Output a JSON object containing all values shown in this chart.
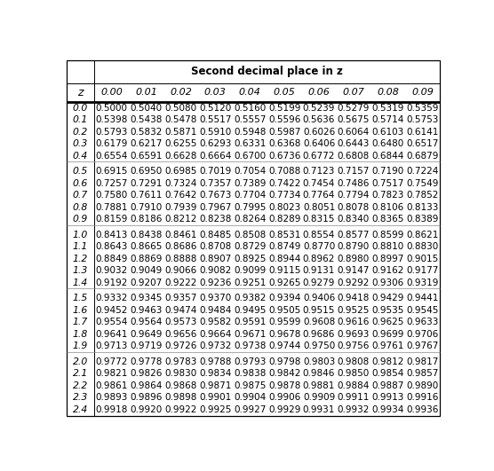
{
  "title": "Second decimal place in z",
  "col_headers": [
    "0.00",
    "0.01",
    "0.02",
    "0.03",
    "0.04",
    "0.05",
    "0.06",
    "0.07",
    "0.08",
    "0.09"
  ],
  "row_headers": [
    "0.0",
    "0.1",
    "0.2",
    "0.3",
    "0.4",
    "0.5",
    "0.6",
    "0.7",
    "0.8",
    "0.9",
    "1.0",
    "1.1",
    "1.2",
    "1.3",
    "1.4",
    "1.5",
    "1.6",
    "1.7",
    "1.8",
    "1.9",
    "2.0",
    "2.1",
    "2.2",
    "2.3",
    "2.4"
  ],
  "table_data": [
    [
      "0.5000",
      "0.5040",
      "0.5080",
      "0.5120",
      "0.5160",
      "0.5199",
      "0.5239",
      "0.5279",
      "0.5319",
      "0.5359"
    ],
    [
      "0.5398",
      "0.5438",
      "0.5478",
      "0.5517",
      "0.5557",
      "0.5596",
      "0.5636",
      "0.5675",
      "0.5714",
      "0.5753"
    ],
    [
      "0.5793",
      "0.5832",
      "0.5871",
      "0.5910",
      "0.5948",
      "0.5987",
      "0.6026",
      "0.6064",
      "0.6103",
      "0.6141"
    ],
    [
      "0.6179",
      "0.6217",
      "0.6255",
      "0.6293",
      "0.6331",
      "0.6368",
      "0.6406",
      "0.6443",
      "0.6480",
      "0.6517"
    ],
    [
      "0.6554",
      "0.6591",
      "0.6628",
      "0.6664",
      "0.6700",
      "0.6736",
      "0.6772",
      "0.6808",
      "0.6844",
      "0.6879"
    ],
    [
      "0.6915",
      "0.6950",
      "0.6985",
      "0.7019",
      "0.7054",
      "0.7088",
      "0.7123",
      "0.7157",
      "0.7190",
      "0.7224"
    ],
    [
      "0.7257",
      "0.7291",
      "0.7324",
      "0.7357",
      "0.7389",
      "0.7422",
      "0.7454",
      "0.7486",
      "0.7517",
      "0.7549"
    ],
    [
      "0.7580",
      "0.7611",
      "0.7642",
      "0.7673",
      "0.7704",
      "0.7734",
      "0.7764",
      "0.7794",
      "0.7823",
      "0.7852"
    ],
    [
      "0.7881",
      "0.7910",
      "0.7939",
      "0.7967",
      "0.7995",
      "0.8023",
      "0.8051",
      "0.8078",
      "0.8106",
      "0.8133"
    ],
    [
      "0.8159",
      "0.8186",
      "0.8212",
      "0.8238",
      "0.8264",
      "0.8289",
      "0.8315",
      "0.8340",
      "0.8365",
      "0.8389"
    ],
    [
      "0.8413",
      "0.8438",
      "0.8461",
      "0.8485",
      "0.8508",
      "0.8531",
      "0.8554",
      "0.8577",
      "0.8599",
      "0.8621"
    ],
    [
      "0.8643",
      "0.8665",
      "0.8686",
      "0.8708",
      "0.8729",
      "0.8749",
      "0.8770",
      "0.8790",
      "0.8810",
      "0.8830"
    ],
    [
      "0.8849",
      "0.8869",
      "0.8888",
      "0.8907",
      "0.8925",
      "0.8944",
      "0.8962",
      "0.8980",
      "0.8997",
      "0.9015"
    ],
    [
      "0.9032",
      "0.9049",
      "0.9066",
      "0.9082",
      "0.9099",
      "0.9115",
      "0.9131",
      "0.9147",
      "0.9162",
      "0.9177"
    ],
    [
      "0.9192",
      "0.9207",
      "0.9222",
      "0.9236",
      "0.9251",
      "0.9265",
      "0.9279",
      "0.9292",
      "0.9306",
      "0.9319"
    ],
    [
      "0.9332",
      "0.9345",
      "0.9357",
      "0.9370",
      "0.9382",
      "0.9394",
      "0.9406",
      "0.9418",
      "0.9429",
      "0.9441"
    ],
    [
      "0.9452",
      "0.9463",
      "0.9474",
      "0.9484",
      "0.9495",
      "0.9505",
      "0.9515",
      "0.9525",
      "0.9535",
      "0.9545"
    ],
    [
      "0.9554",
      "0.9564",
      "0.9573",
      "0.9582",
      "0.9591",
      "0.9599",
      "0.9608",
      "0.9616",
      "0.9625",
      "0.9633"
    ],
    [
      "0.9641",
      "0.9649",
      "0.9656",
      "0.9664",
      "0.9671",
      "0.9678",
      "0.9686",
      "0.9693",
      "0.9699",
      "0.9706"
    ],
    [
      "0.9713",
      "0.9719",
      "0.9726",
      "0.9732",
      "0.9738",
      "0.9744",
      "0.9750",
      "0.9756",
      "0.9761",
      "0.9767"
    ],
    [
      "0.9772",
      "0.9778",
      "0.9783",
      "0.9788",
      "0.9793",
      "0.9798",
      "0.9803",
      "0.9808",
      "0.9812",
      "0.9817"
    ],
    [
      "0.9821",
      "0.9826",
      "0.9830",
      "0.9834",
      "0.9838",
      "0.9842",
      "0.9846",
      "0.9850",
      "0.9854",
      "0.9857"
    ],
    [
      "0.9861",
      "0.9864",
      "0.9868",
      "0.9871",
      "0.9875",
      "0.9878",
      "0.9881",
      "0.9884",
      "0.9887",
      "0.9890"
    ],
    [
      "0.9893",
      "0.9896",
      "0.9898",
      "0.9901",
      "0.9904",
      "0.9906",
      "0.9909",
      "0.9911",
      "0.9913",
      "0.9916"
    ],
    [
      "0.9918",
      "0.9920",
      "0.9922",
      "0.9925",
      "0.9927",
      "0.9929",
      "0.9931",
      "0.9932",
      "0.9934",
      "0.9936"
    ]
  ],
  "group_separators_after": [
    4,
    9,
    14,
    19
  ],
  "background_color": "#ffffff",
  "figwidth": 5.56,
  "figheight": 5.31,
  "dpi": 100
}
